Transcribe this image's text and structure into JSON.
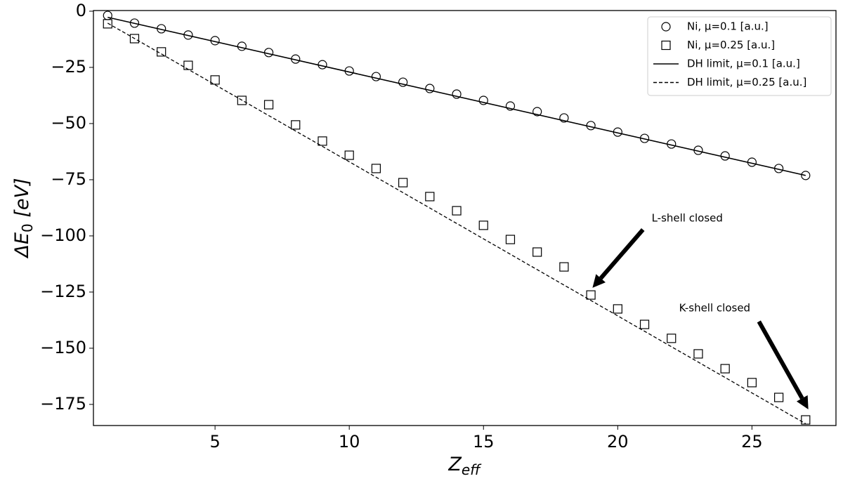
{
  "chart_data": {
    "type": "scatter",
    "xlabel": [
      "Z",
      "eff"
    ],
    "ylabel": [
      "ΔE",
      "0",
      " [eV]"
    ],
    "xlim": [
      0.47,
      28.13
    ],
    "ylim": [
      -184.4,
      0.3
    ],
    "xticks": [
      5,
      10,
      15,
      20,
      25
    ],
    "yticks": [
      0,
      {
        "value": -25,
        "label": "−25"
      },
      {
        "value": -50,
        "label": "−50"
      },
      {
        "value": -75,
        "label": "−75"
      },
      {
        "value": -100,
        "label": "−100"
      },
      {
        "value": -125,
        "label": "−125"
      },
      {
        "value": -150,
        "label": "−150"
      },
      {
        "value": -175,
        "label": "−175"
      }
    ],
    "legend": "upper right",
    "series": [
      {
        "name": "Ni, μ=0.1 [a.u.]",
        "color": "#000000",
        "marker": "circle",
        "x": [
          1,
          2,
          3,
          4,
          5,
          6,
          7,
          8,
          9,
          10,
          11,
          12,
          13,
          14,
          15,
          16,
          17,
          18,
          19,
          20,
          21,
          22,
          23,
          24,
          25,
          26,
          27
        ],
        "values": [
          -1.9,
          -5.3,
          -7.8,
          -10.6,
          -13.1,
          -15.6,
          -18.4,
          -21.3,
          -23.8,
          -26.6,
          -29.1,
          -31.6,
          -34.4,
          -36.9,
          -39.7,
          -42.2,
          -44.7,
          -47.5,
          -50.9,
          -53.8,
          -56.6,
          -59.1,
          -61.9,
          -64.4,
          -67.2,
          -70.0,
          -73.1
        ]
      },
      {
        "name": "Ni, μ=0.25 [a.u.]",
        "color": "#000000",
        "marker": "square",
        "x": [
          1,
          2,
          3,
          4,
          5,
          6,
          7,
          8,
          9,
          10,
          11,
          12,
          13,
          14,
          15,
          16,
          17,
          18,
          19,
          20,
          21,
          22,
          23,
          24,
          25,
          26,
          27
        ],
        "values": [
          -5.6,
          -12.2,
          -18.1,
          -24.1,
          -30.6,
          -39.7,
          -41.6,
          -50.6,
          -57.8,
          -64.1,
          -70.0,
          -76.3,
          -82.5,
          -88.8,
          -95.3,
          -101.6,
          -107.2,
          -113.8,
          -126.3,
          -132.5,
          -139.4,
          -145.6,
          -152.5,
          -159.1,
          -165.3,
          -171.9,
          -181.9
        ]
      },
      {
        "name": "DH limit, μ=0.1 [a.u.]",
        "color": "#000000",
        "linestyle": "solid",
        "x": [
          1,
          27
        ],
        "values": [
          -2.7,
          -73.1
        ]
      },
      {
        "name": "DH limit, μ=0.25 [a.u.]",
        "color": "#000000",
        "linestyle": "dashed",
        "x": [
          1,
          27
        ],
        "values": [
          -5.3,
          -183.6
        ]
      }
    ],
    "annotations": [
      {
        "text": "L-shell closed",
        "xy": [
          19.06,
          -123.1
        ],
        "xytext": [
          20.94,
          -97.2
        ]
      },
      {
        "text": "K-shell closed",
        "xy": [
          27.1,
          -177.2
        ],
        "xytext": [
          25.26,
          -138.1
        ]
      }
    ]
  }
}
